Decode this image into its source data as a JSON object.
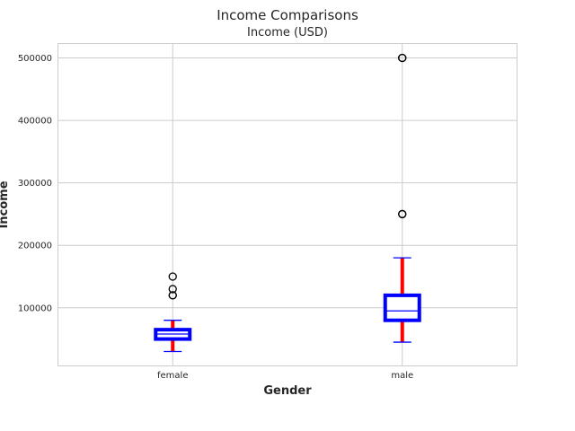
{
  "chart_data": {
    "type": "box",
    "title": "Income Comparisons",
    "subtitle": "Income (USD)",
    "xlabel": "Gender",
    "ylabel": "Income",
    "ylim": [
      7000,
      523000
    ],
    "yticks": [
      100000,
      200000,
      300000,
      400000,
      500000
    ],
    "grid": true,
    "categories": [
      "female",
      "male"
    ],
    "boxes": [
      {
        "category": "female",
        "whisker_low": 30000,
        "q1": 50000,
        "median": 58000,
        "q3": 65000,
        "whisker_high": 80000,
        "outliers": [
          120000,
          120000,
          130000,
          150000
        ]
      },
      {
        "category": "male",
        "whisker_low": 45000,
        "q1": 80000,
        "median": 95000,
        "q3": 120000,
        "whisker_high": 180000,
        "outliers": [
          250000,
          250000,
          500000,
          500000
        ]
      }
    ],
    "colors": {
      "box": "#0000ff",
      "whisker": "#ff0000",
      "cap": "#0000ff",
      "median": "#0000ff",
      "outlier": "#000000",
      "grid": "#cccccc",
      "frame": "#cccccc"
    }
  }
}
